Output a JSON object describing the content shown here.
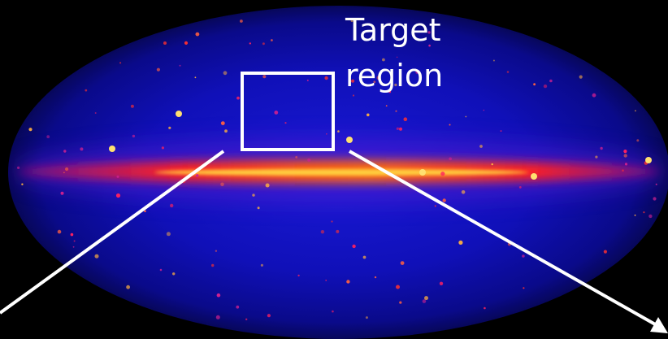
{
  "annotation": {
    "lines": [
      "Target",
      "region"
    ]
  }
}
